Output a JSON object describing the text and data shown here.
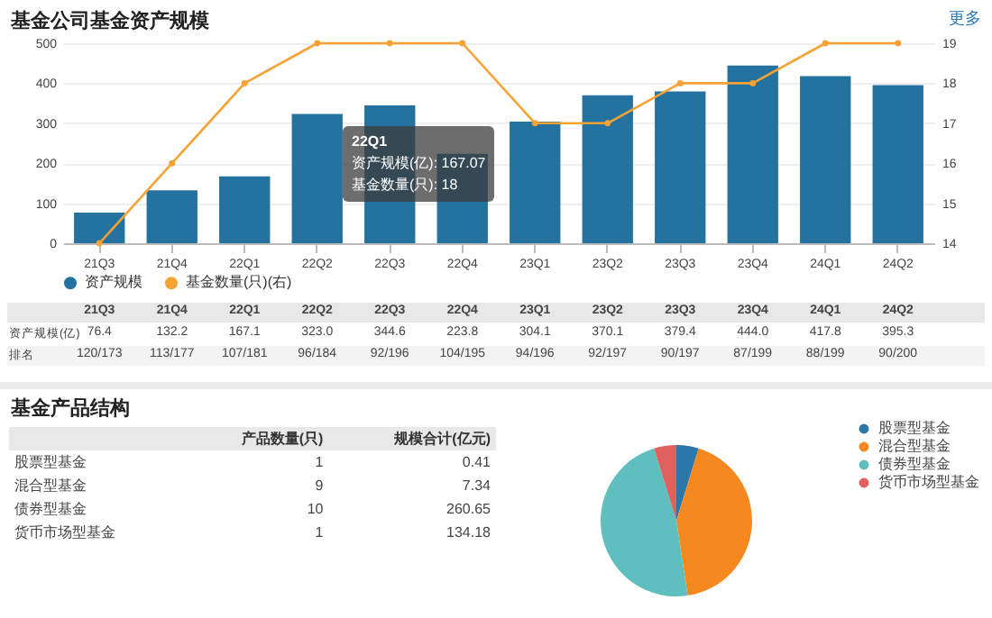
{
  "chart_data": [
    {
      "type": "bar",
      "title": "基金公司基金资产规模",
      "categories": [
        "21Q3",
        "21Q4",
        "22Q1",
        "22Q2",
        "22Q3",
        "22Q4",
        "23Q1",
        "23Q2",
        "23Q3",
        "23Q4",
        "24Q1",
        "24Q2"
      ],
      "series": [
        {
          "name": "资产规模",
          "type": "bar",
          "color": "#23729f",
          "values": [
            76.4,
            132.2,
            167.1,
            323.0,
            344.6,
            223.8,
            304.1,
            370.1,
            379.4,
            444.0,
            417.8,
            395.3
          ],
          "value_labels": [
            "76.4",
            "132.2",
            "167.1",
            "323.0",
            "344.6",
            "223.8",
            "304.1",
            "370.1",
            "379.4",
            "444.0",
            "417.8",
            "395.3"
          ]
        },
        {
          "name": "基金数量(只)(右)",
          "type": "line",
          "axis": "y2",
          "color": "#f7a234",
          "values": [
            14,
            16,
            18,
            19,
            19,
            19,
            17,
            17,
            18,
            18,
            19,
            19
          ]
        }
      ],
      "ylim": [
        0,
        500
      ],
      "yticks": [
        0,
        100,
        200,
        300,
        400,
        500
      ],
      "y2lim": [
        14,
        19
      ],
      "y2ticks": [
        14,
        15,
        16,
        17,
        18,
        19
      ],
      "grid": "y",
      "legend": "bottom",
      "marker": "circle",
      "annotations": [
        "更多",
        "资产规模(亿)",
        "排名",
        "22Q1",
        "资产规模(亿): 167.07",
        "基金数量(只): 18",
        "120/173",
        "113/177",
        "107/181",
        "96/184",
        "92/196",
        "104/195",
        "94/196",
        "92/197",
        "90/197",
        "87/199",
        "88/199",
        "90/200"
      ]
    },
    {
      "type": "other",
      "title": "基金产品结构",
      "categories": [
        "股票型基金",
        "混合型基金",
        "债券型基金",
        "货币市场型基金"
      ],
      "series": [
        {
          "name": "产品数量(只)",
          "values": [
            1,
            9,
            10,
            1
          ]
        },
        {
          "name": "规模合计(亿元)",
          "values": [
            0.41,
            7.34,
            260.65,
            134.18
          ]
        }
      ],
      "data_labels": true
    },
    {
      "type": "pie",
      "categories": [
        "股票型基金",
        "混合型基金",
        "债券型基金",
        "货币市场型基金"
      ],
      "values": [
        4.76,
        42.86,
        47.62,
        4.76
      ],
      "colors": [
        "#2a77a8",
        "#f5891f",
        "#5fbfbf",
        "#e0605d"
      ],
      "legend": "right"
    }
  ]
}
